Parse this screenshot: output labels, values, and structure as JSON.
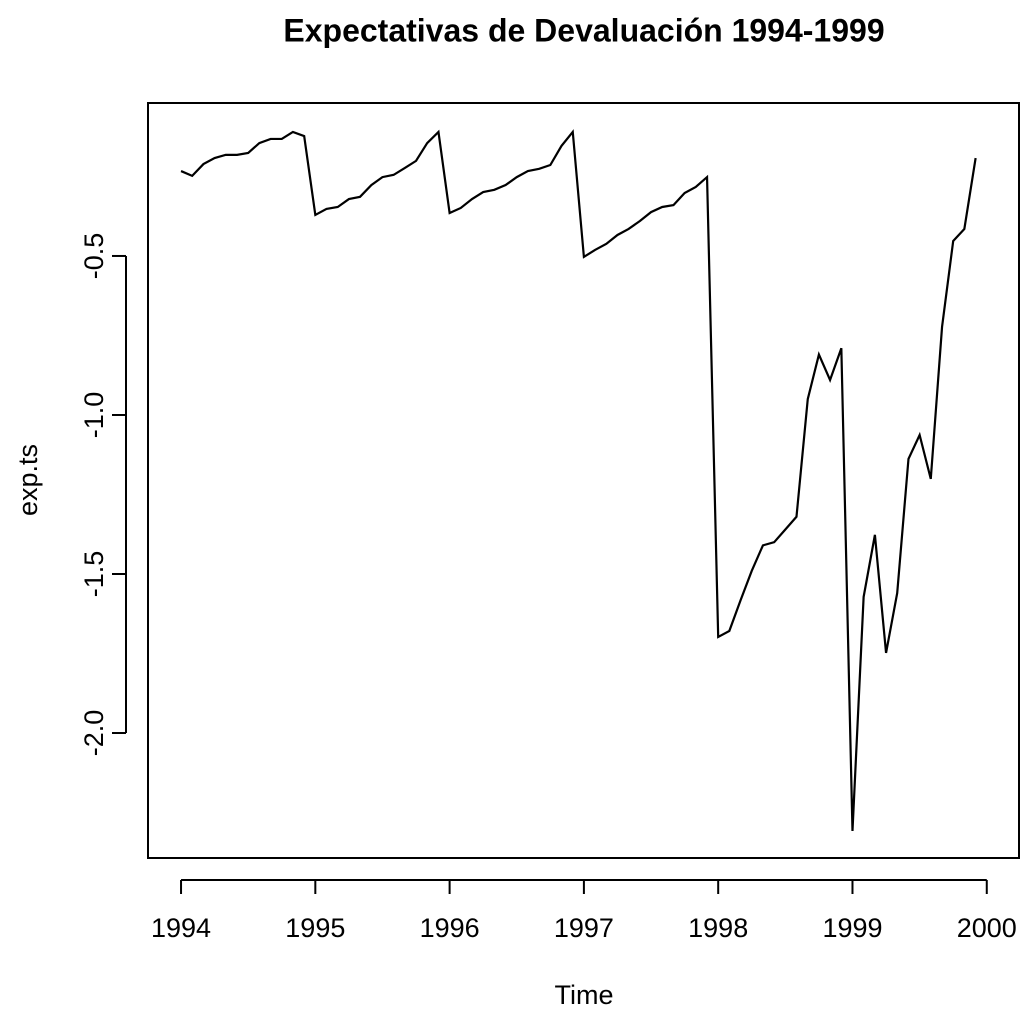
{
  "chart_data": {
    "type": "line",
    "title": "Expectativas de Devaluación 1994-1999",
    "x_label": "Time",
    "y_label": "exp.ts",
    "x": [
      1994,
      1994.083,
      1994.167,
      1994.25,
      1994.333,
      1994.417,
      1994.5,
      1994.583,
      1994.667,
      1994.75,
      1994.833,
      1994.917,
      1995,
      1995.083,
      1995.167,
      1995.25,
      1995.333,
      1995.417,
      1995.5,
      1995.583,
      1995.667,
      1995.75,
      1995.833,
      1995.917,
      1996,
      1996.083,
      1996.167,
      1996.25,
      1996.333,
      1996.417,
      1996.5,
      1996.583,
      1996.667,
      1996.75,
      1996.833,
      1996.917,
      1997,
      1997.083,
      1997.167,
      1997.25,
      1997.333,
      1997.417,
      1997.5,
      1997.583,
      1997.667,
      1997.75,
      1997.833,
      1997.917,
      1998,
      1998.083,
      1998.167,
      1998.25,
      1998.333,
      1998.417,
      1998.5,
      1998.583,
      1998.667,
      1998.75,
      1998.833,
      1998.917,
      1999,
      1999.083,
      1999.167,
      1999.25,
      1999.333,
      1999.417,
      1999.5,
      1999.583,
      1999.667,
      1999.75,
      1999.833,
      1999.917
    ],
    "series": [
      {
        "name": "exp.ts",
        "color": "#000000",
        "values": [
          -0.233,
          -0.248,
          -0.211,
          -0.192,
          -0.182,
          -0.182,
          -0.176,
          -0.145,
          -0.132,
          -0.132,
          -0.11,
          -0.123,
          -0.371,
          -0.352,
          -0.346,
          -0.321,
          -0.314,
          -0.277,
          -0.252,
          -0.245,
          -0.223,
          -0.201,
          -0.145,
          -0.11,
          -0.365,
          -0.349,
          -0.321,
          -0.299,
          -0.292,
          -0.277,
          -0.252,
          -0.233,
          -0.226,
          -0.214,
          -0.154,
          -0.11,
          -0.503,
          -0.481,
          -0.462,
          -0.434,
          -0.415,
          -0.39,
          -0.362,
          -0.346,
          -0.34,
          -0.302,
          -0.283,
          -0.252,
          -1.698,
          -1.679,
          -1.582,
          -1.49,
          -1.41,
          -1.4,
          -1.36,
          -1.32,
          -0.95,
          -0.81,
          -0.89,
          -0.79,
          -2.308,
          -1.572,
          -1.377,
          -1.748,
          -1.56,
          -1.138,
          -1.063,
          -1.201,
          -0.723,
          -0.453,
          -0.415,
          -0.192
        ]
      }
    ],
    "xlim": [
      1993.754,
      2000.24
    ],
    "ylim": [
      -2.393,
      -0.019
    ],
    "xticks": [
      1994,
      1995,
      1996,
      1997,
      1998,
      1999,
      2000
    ],
    "yticks": [
      {
        "value": -2,
        "label": "-2.0"
      },
      {
        "value": -1.5,
        "label": "-1.5"
      },
      {
        "value": -1,
        "label": "-1.0"
      },
      {
        "value": -0.5,
        "label": "-0.5"
      }
    ]
  }
}
